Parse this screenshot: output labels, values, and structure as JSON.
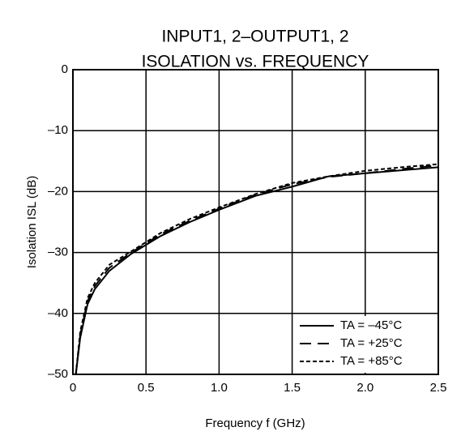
{
  "chart_data": {
    "type": "line",
    "title": [
      "INPUT1, 2–OUTPUT1, 2",
      "ISOLATION vs. FREQUENCY"
    ],
    "x_label": "Frequency  f (GHz)",
    "y_label": "Isolation  ISL (dB)",
    "x": [
      0.02,
      0.05,
      0.1,
      0.15,
      0.25,
      0.4,
      0.6,
      0.8,
      1.0,
      1.25,
      1.5,
      1.75,
      2.0,
      2.25,
      2.5
    ],
    "series": [
      {
        "name": "TA = –45°C",
        "color": "#000000",
        "dash": "solid",
        "values": [
          -50,
          -44,
          -38.5,
          -36,
          -33,
          -30.2,
          -27.3,
          -25,
          -23,
          -20.7,
          -19.2,
          -17.5,
          -17,
          -16.5,
          -16
        ]
      },
      {
        "name": "TA = +25°C",
        "color": "#000000",
        "dash": "long",
        "values": [
          -50,
          -43.5,
          -38,
          -35.5,
          -32.5,
          -30,
          -27,
          -24.8,
          -22.8,
          -20.5,
          -18.8,
          -17.6,
          -17,
          -16.3,
          -15.7
        ]
      },
      {
        "name": "TA = +85°C",
        "color": "#000000",
        "dash": "short",
        "values": [
          -50,
          -43,
          -37.5,
          -35,
          -32,
          -29.8,
          -26.8,
          -24.5,
          -22.6,
          -20.4,
          -18.6,
          -17.5,
          -16.6,
          -16,
          -15.5
        ]
      }
    ],
    "xlim": [
      0,
      2.5
    ],
    "xticks": [
      0,
      0.5,
      {
        "value": 1,
        "label": "1.0"
      },
      1.5,
      {
        "value": 2,
        "label": "2.0"
      },
      2.5
    ],
    "ylim": [
      -50,
      0
    ],
    "yticks": [
      0,
      {
        "value": -10,
        "label": "–10"
      },
      {
        "value": -20,
        "label": "–20"
      },
      {
        "value": -30,
        "label": "–30"
      },
      {
        "value": -40,
        "label": "–40"
      },
      {
        "value": -50,
        "label": "–50"
      }
    ],
    "grid": true,
    "legend": "lower right"
  }
}
